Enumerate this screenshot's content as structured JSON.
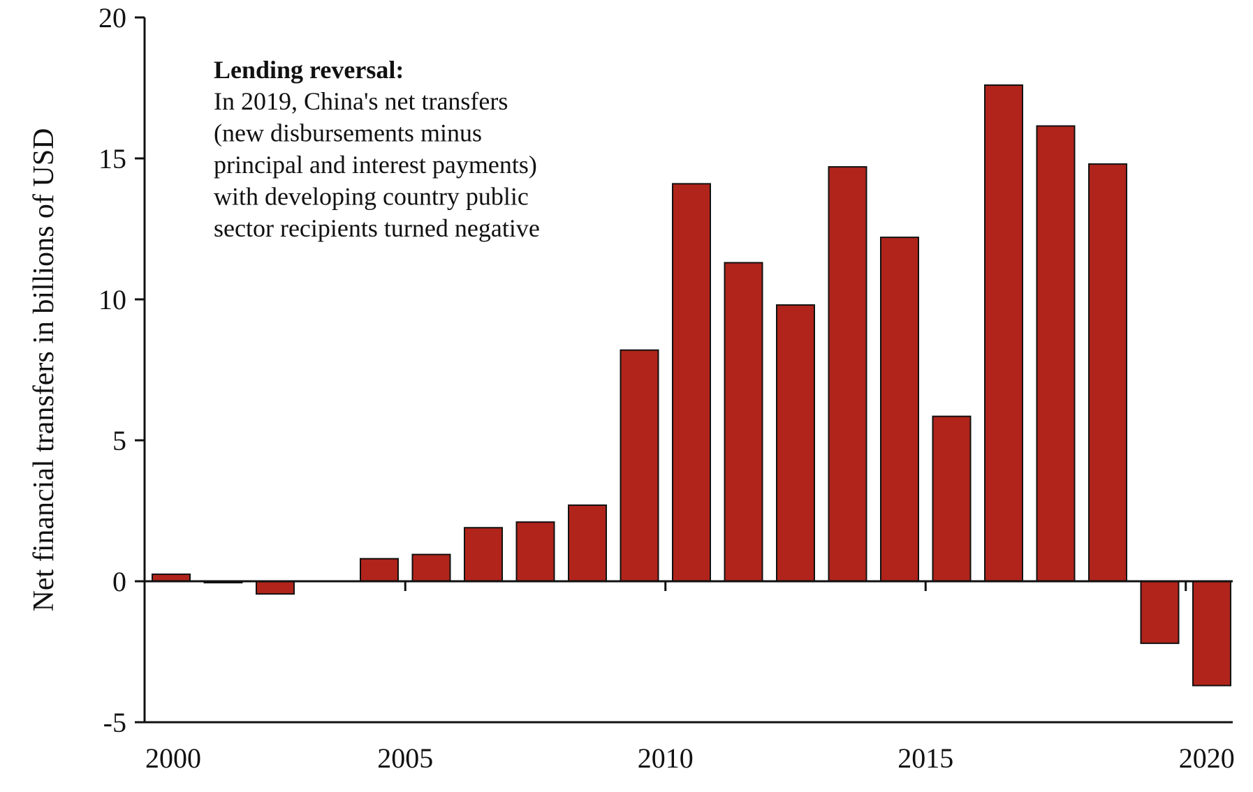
{
  "chart_data": {
    "type": "bar",
    "title": "",
    "xlabel": "",
    "ylabel": "Net financial transfers in billions of USD",
    "ylim": [
      -5,
      20
    ],
    "yticks": [
      20,
      15,
      10,
      5,
      0,
      -5
    ],
    "yticks_labels": [
      "20",
      "15",
      "10",
      "5",
      "0",
      "-5"
    ],
    "xticks": [
      "2000",
      "2005",
      "2010",
      "2015",
      "2020"
    ],
    "categories": [
      "2000",
      "2001",
      "2002",
      "2003",
      "2004",
      "2005",
      "2006",
      "2007",
      "2008",
      "2009",
      "2010",
      "2011",
      "2012",
      "2013",
      "2014",
      "2015",
      "2016",
      "2017",
      "2018",
      "2019",
      "2020"
    ],
    "values": [
      0.25,
      -0.05,
      -0.45,
      0.0,
      0.8,
      0.95,
      1.9,
      2.1,
      2.7,
      8.2,
      14.1,
      11.3,
      9.8,
      14.7,
      12.2,
      5.85,
      17.6,
      16.15,
      14.8,
      -2.2,
      -3.7
    ],
    "bar_color": "#b0241b",
    "grid": false,
    "legend": "none",
    "annotation": {
      "heading": "Lending reversal:",
      "lines": [
        "In 2019, China's net transfers",
        "(new disbursements minus",
        "principal and interest payments)",
        "with developing country public",
        "sector recipients turned negative"
      ]
    }
  }
}
